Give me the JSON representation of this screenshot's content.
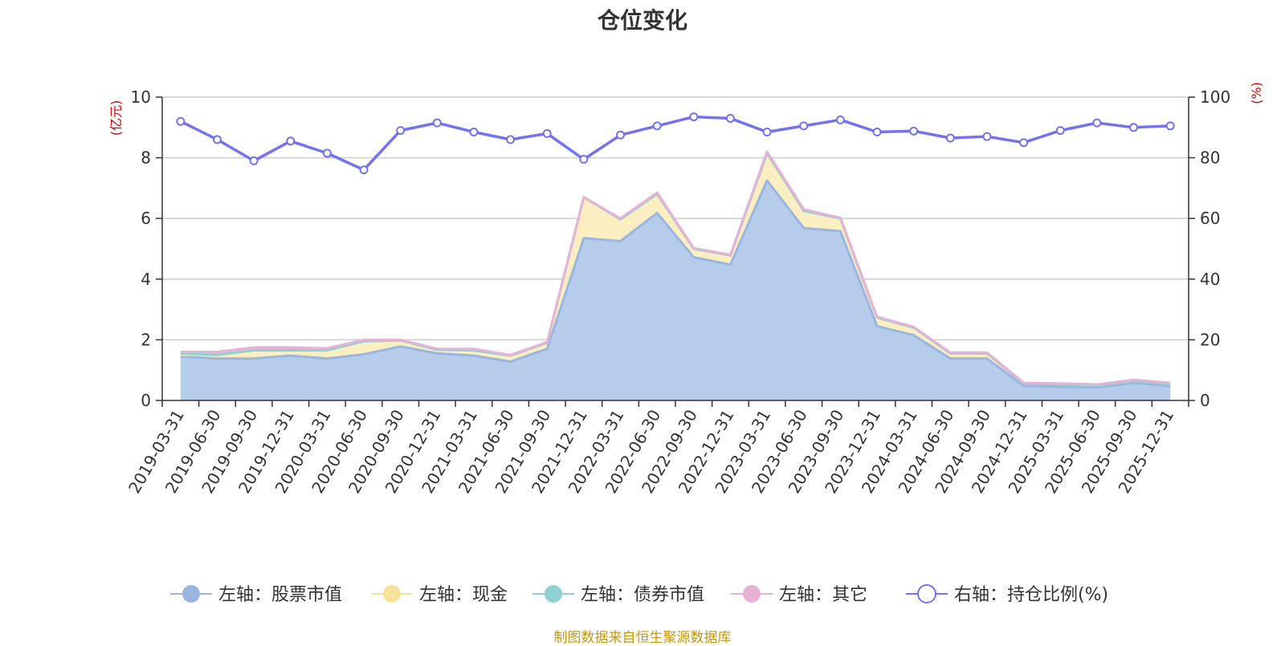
{
  "title": "仓位变化",
  "footer": "制图数据来自恒生聚源数据库",
  "colors": {
    "stock": "#9ab6e0",
    "stock_fill": "#b6cceb",
    "cash": "#f7e29b",
    "cash_fill": "#fbefc2",
    "bond": "#8fd0d3",
    "other": "#e6b2d6",
    "ratio": "#7373f0",
    "grid": "#cccccc",
    "axis": "#333333",
    "unit": "#e00000"
  },
  "chart_data": {
    "type": "area",
    "title": "仓位变化",
    "left_axis_unit": "(亿元)",
    "right_axis_unit": "(%)",
    "ylim_left": [
      0,
      10
    ],
    "ylim_right": [
      0,
      100
    ],
    "yticks_left": [
      "0",
      "2",
      "4",
      "6",
      "8",
      "10"
    ],
    "yticks_right": [
      "0",
      "20",
      "40",
      "60",
      "80",
      "100"
    ],
    "categories": [
      "2019-03-31",
      "2019-06-30",
      "2019-09-30",
      "2019-12-31",
      "2020-03-31",
      "2020-06-30",
      "2020-09-30",
      "2020-12-31",
      "2021-03-31",
      "2021-06-30",
      "2021-09-30",
      "2021-12-31",
      "2022-03-31",
      "2022-06-30",
      "2022-09-30",
      "2022-12-31",
      "2023-03-31",
      "2023-06-30",
      "2023-09-30",
      "2023-12-31",
      "2024-03-31",
      "2024-06-30",
      "2024-09-30",
      "2024-12-31",
      "2025-03-31",
      "2025-06-30",
      "2025-09-30",
      "2025-12-31"
    ],
    "series": [
      {
        "name": "左轴：股票市值",
        "axis": "left",
        "stack": true,
        "values": [
          1.45,
          1.38,
          1.38,
          1.48,
          1.38,
          1.52,
          1.78,
          1.55,
          1.48,
          1.28,
          1.7,
          5.35,
          5.25,
          6.18,
          4.72,
          4.48,
          7.25,
          5.68,
          5.58,
          2.45,
          2.15,
          1.38,
          1.38,
          0.48,
          0.45,
          0.43,
          0.58,
          0.48
        ]
      },
      {
        "name": "左轴：现金",
        "axis": "left",
        "stack": true,
        "values": [
          0.05,
          0.12,
          0.27,
          0.17,
          0.27,
          0.43,
          0.2,
          0.12,
          0.17,
          0.2,
          0.2,
          1.35,
          0.72,
          0.63,
          0.28,
          0.3,
          0.9,
          0.57,
          0.42,
          0.28,
          0.25,
          0.17,
          0.17,
          0.07,
          0.07,
          0.06,
          0.06,
          0.06
        ]
      },
      {
        "name": "左轴：债券市值",
        "axis": "left",
        "stack": true,
        "values": [
          0.05,
          0.0,
          0.0,
          0.0,
          0.0,
          0.0,
          0.0,
          0.0,
          0.0,
          0.0,
          0.0,
          0.0,
          0.0,
          0.0,
          0.0,
          0.0,
          0.0,
          0.0,
          0.0,
          0.0,
          0.0,
          0.0,
          0.0,
          0.0,
          0.0,
          0.0,
          0.0,
          0.0
        ]
      },
      {
        "name": "左轴：其它",
        "axis": "left",
        "stack": true,
        "values": [
          0.05,
          0.1,
          0.1,
          0.1,
          0.07,
          0.05,
          0.02,
          0.03,
          0.05,
          0.02,
          0.02,
          0.0,
          0.03,
          0.04,
          0.02,
          0.02,
          0.05,
          0.05,
          0.02,
          0.03,
          0.02,
          0.03,
          0.03,
          0.03,
          0.04,
          0.04,
          0.04,
          0.04
        ]
      },
      {
        "name": "右轴：持仓比例(%)",
        "axis": "right",
        "stack": false,
        "values": [
          92,
          86,
          79,
          85.5,
          81.5,
          76,
          89,
          91.5,
          88.5,
          86,
          88,
          79.5,
          87.5,
          90.5,
          93.5,
          93,
          88.5,
          90.5,
          92.5,
          88.5,
          88.8,
          86.5,
          87,
          85,
          89,
          91.5,
          90,
          90.5
        ]
      }
    ]
  }
}
